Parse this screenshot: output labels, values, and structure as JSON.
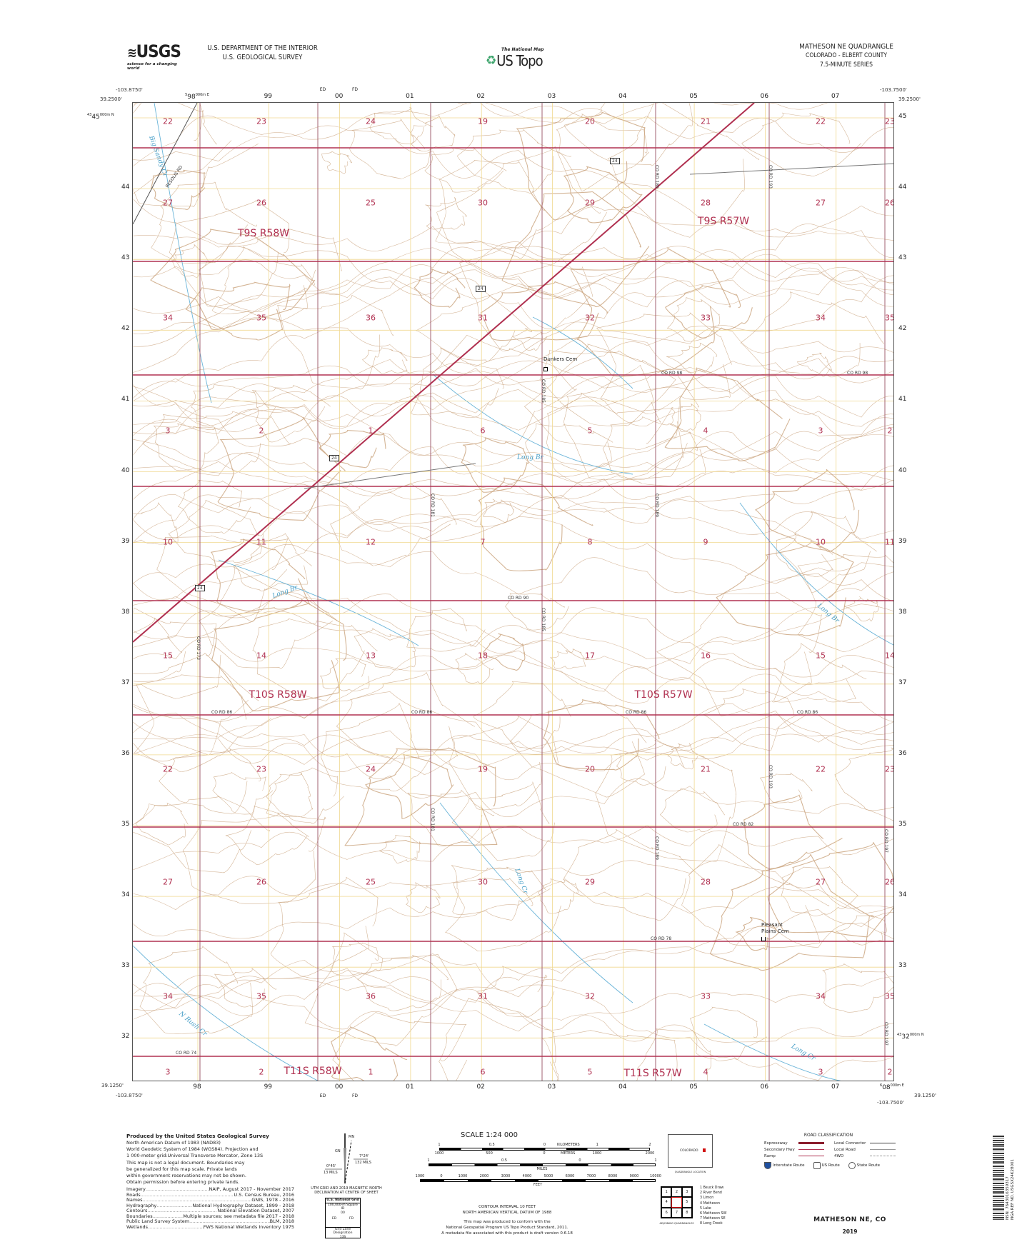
{
  "header": {
    "agency_line1": "U.S. DEPARTMENT OF THE INTERIOR",
    "agency_line2": "U.S. GEOLOGICAL SURVEY",
    "usgs_logo": "USGS",
    "usgs_tagline": "science for a changing world",
    "national_map": "The National Map",
    "us_topo": "US Topo",
    "quad_title": "MATHESON NE QUADRANGLE",
    "state_county": "COLORADO - ELBERT COUNTY",
    "series": "7.5-MINUTE SERIES"
  },
  "corners": {
    "top_left_lon": "-103.8750'",
    "top_left_lat": "39.2500'",
    "top_right_lon": "-103.7500'",
    "top_right_lat": "39.2500'",
    "bottom_left_lon": "-103.8750'",
    "bottom_left_lat": "39.1250'",
    "bottom_right_lon": "-103.7500'",
    "bottom_right_lat": "39.1250'"
  },
  "utm": {
    "easting_labels": [
      "98",
      "99",
      "00",
      "01",
      "02",
      "03",
      "04",
      "05",
      "06",
      "07"
    ],
    "easting_first_prefix": "5",
    "easting_suffix": "000m E",
    "easting_last": "08",
    "easting_last_prefix": "6",
    "northing_labels": [
      "45",
      "44",
      "43",
      "42",
      "41",
      "40",
      "39",
      "38",
      "37",
      "36",
      "35",
      "34",
      "33",
      "32"
    ],
    "northing_prefix": "43",
    "northing_suffix": "000m N",
    "grid_zone_top": [
      "ED",
      "FD"
    ],
    "grid_zone_bottom": [
      "ED",
      "00",
      "FD"
    ]
  },
  "sections": [
    [
      "22",
      "23",
      "24",
      "19",
      "20",
      "21",
      "22",
      "23"
    ],
    [
      "27",
      "26",
      "25",
      "30",
      "29",
      "28",
      "27",
      "26"
    ],
    [
      "34",
      "35",
      "36",
      "31",
      "32",
      "33",
      "34",
      "35"
    ],
    [
      "3",
      "2",
      "1",
      "6",
      "5",
      "4",
      "3",
      "2"
    ],
    [
      "10",
      "11",
      "12",
      "7",
      "8",
      "9",
      "10",
      "11"
    ],
    [
      "15",
      "14",
      "13",
      "18",
      "17",
      "16",
      "15",
      "14"
    ],
    [
      "22",
      "23",
      "24",
      "19",
      "20",
      "21",
      "22",
      "23"
    ],
    [
      "27",
      "26",
      "25",
      "30",
      "29",
      "28",
      "27",
      "26"
    ],
    [
      "34",
      "35",
      "36",
      "31",
      "32",
      "33",
      "34",
      "35"
    ],
    [
      "3",
      "2",
      "1",
      "6",
      "5",
      "4",
      "3",
      "2"
    ]
  ],
  "townships": [
    "T9S R58W",
    "T9S R57W",
    "T10S R58W",
    "T10S R57W",
    "T11S R58W",
    "T11S R57W"
  ],
  "roads": {
    "co_rd_98": "CO RD 98",
    "co_rd_90": "CO RD 90",
    "co_rd_86": "CO RD 86",
    "co_rd_82": "CO RD 82",
    "co_rd_78": "CO RD 78",
    "co_rd_74": "CO RD 74",
    "co_rd_173": "CO RD 173",
    "co_rd_181": "CO RD 181",
    "co_rd_185": "CO RD 185",
    "co_rd_189": "CO RD 189",
    "co_rd_193": "CO RD 193",
    "co_rd_197": "CO RD 197",
    "us_24": "24",
    "resolis_rd": "RESOLIS RD"
  },
  "features": {
    "dunkers_cem": "Dunkers Cem",
    "pleasant_plains_cem": "Pleasant Plains Cem",
    "long_br": "Long Br",
    "long_cr": "Long Cr",
    "n_rush_cr": "N Rush Cr",
    "big_sandy_cr": "Big Sandy Cr"
  },
  "colors": {
    "section_line": "#b03050",
    "road": "#b03050",
    "contour": "#c9a27c",
    "water": "#6ab4d8",
    "utm_grid": "#f0d890"
  },
  "footer": {
    "produced_by": "Produced by the United States Geological Survey",
    "datum_lines": [
      "North American Datum of 1983 (NAD83)",
      "World Geodetic System of 1984 (WGS84). Projection and",
      "1 000-meter grid:Universal Transverse Mercator, Zone 13S"
    ],
    "legal_note": "This map is not a legal document. Boundaries may be generalized for this map scale. Private lands within government reservations may not be shown. Obtain permission before entering private lands.",
    "sources": [
      {
        "label": "Imagery",
        "value": "NAIP, August 2017 - November 2017"
      },
      {
        "label": "Roads",
        "value": "U.S. Census Bureau, 2016"
      },
      {
        "label": "Names",
        "value": "GNIS, 1978 - 2016"
      },
      {
        "label": "Hydrography",
        "value": "National Hydrography Dataset, 1899 - 2018"
      },
      {
        "label": "Contours",
        "value": "National Elevation Dataset, 2007"
      },
      {
        "label": "Boundaries",
        "value": "Multiple sources; see metadata file 2017 - 2018"
      },
      {
        "label": "Public Land Survey System",
        "value": "BLM, 2018"
      },
      {
        "label": "Wetlands",
        "value": "FWS National Wetlands Inventory 1975"
      }
    ],
    "declination": {
      "mn": "MN",
      "gn": "GN",
      "east_angle": "7°24'",
      "east_mils": "132 MILS",
      "west_angle": "0°45'",
      "west_mils": "13 MILS",
      "caption": "UTM GRID AND 2019 MAGNETIC NORTH DECLINATION AT CENTER OF SHEET"
    },
    "usng": {
      "title": "U.S. National Grid",
      "square_id": "100,000-m Square ID",
      "center": "00",
      "left": "ED",
      "right": "FD",
      "gzd_label": "Grid Zone Designation",
      "gzd": "13S"
    },
    "scale": {
      "title": "SCALE 1:24 000",
      "km_ticks": [
        "1",
        "0.5",
        "0",
        "1",
        "2"
      ],
      "km_label": "KILOMETERS",
      "m_ticks": [
        "1000",
        "500",
        "0",
        "1000",
        "2000"
      ],
      "m_label": "METERS",
      "mi_ticks": [
        "1",
        "0.5",
        "0",
        "1"
      ],
      "mi_label": "MILES",
      "ft_ticks": [
        "1000",
        "0",
        "1000",
        "2000",
        "3000",
        "4000",
        "5000",
        "6000",
        "7000",
        "8000",
        "9000",
        "10000"
      ],
      "ft_label": "FEET"
    },
    "contour_interval": "CONTOUR INTERVAL 10 FEET",
    "vertical_datum": "NORTH AMERICAN VERTICAL DATUM OF 1988",
    "standard_lines": [
      "This map was produced to conform with the",
      "National Geospatial Program US Topo Product Standard, 2011.",
      "A metadata file associated with this product is draft version 0.6.18"
    ],
    "quad_location": {
      "state": "COLORADO",
      "caption": "QUADRANGLE LOCATION"
    },
    "road_class": {
      "title": "ROAD CLASSIFICATION",
      "left": [
        "Expressway",
        "Secondary Hwy",
        "Ramp"
      ],
      "right": [
        "Local Connector",
        "Local Road",
        "4WD"
      ],
      "shields": [
        "Interstate Route",
        "US Route",
        "State Route"
      ]
    },
    "adjoining": {
      "caption": "ADJOINING QUADRANGLES",
      "cells": [
        "1",
        "2",
        "3",
        "4",
        "",
        "5",
        "6",
        "7",
        "8"
      ],
      "names": [
        "1 Beuck Draw",
        "2 River Bend",
        "3 Limon",
        "4 Matheson",
        "5 Lake",
        "6 Matheson SW",
        "7 Matheson SE",
        "8 Long Creek"
      ]
    },
    "map_name": "MATHESON NE, CO",
    "year": "2019",
    "barcode": {
      "nsn": "NSN. 7643016359317",
      "nga": "NGA REF NO. USGSX24K28001"
    }
  }
}
